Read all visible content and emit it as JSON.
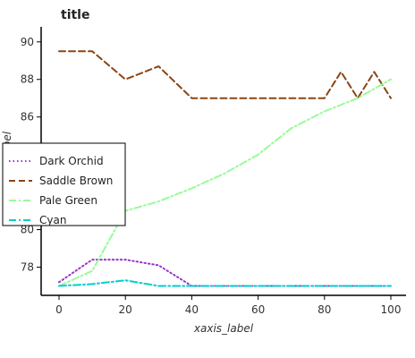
{
  "chart_data": {
    "type": "line",
    "title": "title",
    "xlabel": "xaxis_label",
    "ylabel": "yaxis_label",
    "xlim": [
      0,
      100
    ],
    "ylim": [
      76.5,
      90.8
    ],
    "x_ticks": [
      0,
      20,
      40,
      60,
      80,
      100
    ],
    "y_ticks": [
      78,
      80,
      82,
      84,
      86,
      88,
      90
    ],
    "grid": false,
    "legend_position": "center-left",
    "series": [
      {
        "name": "Dark Orchid",
        "color": "#9932cc",
        "style": "dotted",
        "x": [
          0,
          10,
          20,
          30,
          40,
          50,
          60,
          70,
          80,
          90,
          100
        ],
        "y": [
          77.2,
          78.4,
          78.4,
          78.1,
          77.0,
          77.0,
          77.0,
          77.0,
          77.0,
          77.0,
          77.0
        ]
      },
      {
        "name": "Saddle Brown",
        "color": "#8b4513",
        "style": "dashed",
        "x": [
          0,
          10,
          20,
          30,
          40,
          50,
          60,
          70,
          80,
          85,
          90,
          95,
          100
        ],
        "y": [
          89.5,
          89.5,
          88.0,
          88.7,
          87.0,
          87.0,
          87.0,
          87.0,
          87.0,
          88.4,
          87.0,
          88.4,
          87.0
        ]
      },
      {
        "name": "Pale Green",
        "color": "#98fb98",
        "style": "dashdot",
        "x": [
          0,
          10,
          20,
          30,
          40,
          50,
          60,
          70,
          80,
          90,
          100
        ],
        "y": [
          77.0,
          77.8,
          81.0,
          81.5,
          82.2,
          83.0,
          84.0,
          85.4,
          86.3,
          87.0,
          88.0
        ]
      },
      {
        "name": "Cyan",
        "color": "#00ced1",
        "style": "dashdot",
        "x": [
          0,
          10,
          20,
          30,
          40,
          50,
          60,
          70,
          80,
          90,
          100
        ],
        "y": [
          77.0,
          77.1,
          77.3,
          77.0,
          77.0,
          77.0,
          77.0,
          77.0,
          77.0,
          77.0,
          77.0
        ]
      }
    ],
    "legend": [
      "Dark Orchid",
      "Saddle Brown",
      "Pale Green",
      "Cyan"
    ]
  }
}
